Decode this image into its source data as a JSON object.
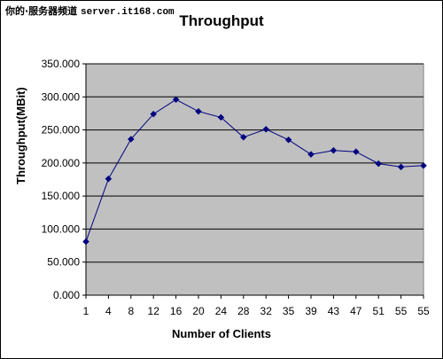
{
  "watermark": {
    "text": "你的·服务器频道",
    "url": "server.it168.com"
  },
  "chart_data": {
    "type": "line",
    "title": "Throughput",
    "xlabel": "Number of Clients",
    "ylabel": "Throughput(MBit)",
    "categories": [
      "1",
      "4",
      "8",
      "12",
      "16",
      "20",
      "24",
      "28",
      "32",
      "35",
      "39",
      "43",
      "47",
      "51",
      "55",
      "55"
    ],
    "values": [
      81,
      176,
      236,
      274,
      296,
      278,
      269,
      239,
      251,
      235,
      213,
      219,
      217,
      199,
      194,
      196
    ],
    "ylim": [
      0,
      350
    ],
    "yticks": [
      "0.000",
      "50.000",
      "100.000",
      "150.000",
      "200.000",
      "250.000",
      "300.000",
      "350.000"
    ],
    "grid": "horizontal",
    "colors": {
      "plot_bg": "#c0c0c0",
      "series": "#000080"
    }
  }
}
